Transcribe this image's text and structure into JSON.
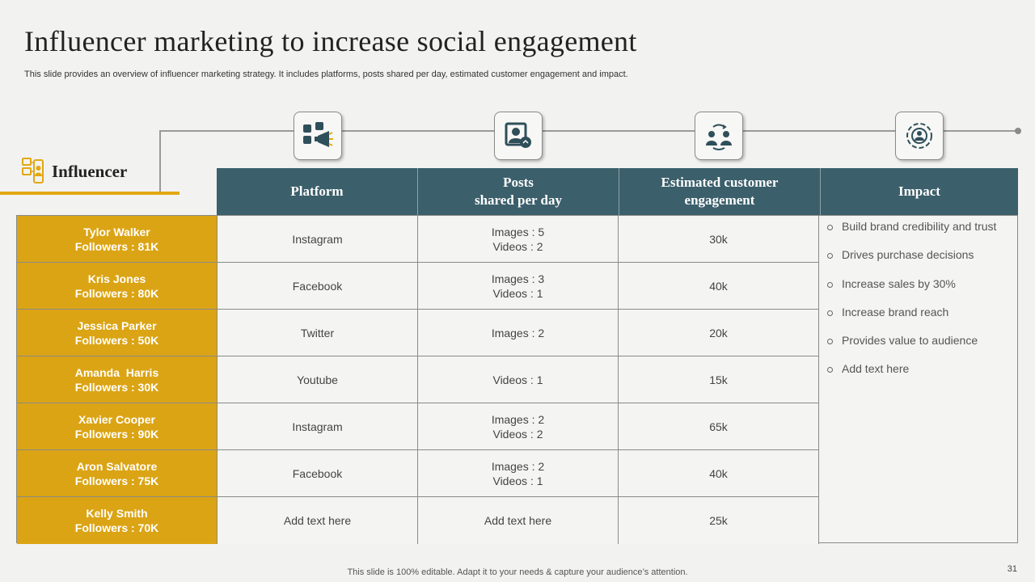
{
  "title": "Influencer marketing to increase social engagement",
  "subtitle": "This slide provides an overview of influencer marketing strategy. It includes platforms, posts shared per day, estimated customer engagement and impact.",
  "influencer_label": "Influencer",
  "icons": [
    "social-media-icon",
    "profile-card-icon",
    "engagement-people-icon",
    "impact-target-icon"
  ],
  "colors": {
    "accent": "#dba414",
    "header": "#3b5f6b",
    "background": "#f2f2f0"
  },
  "headers": {
    "platform": "Platform",
    "posts_line1": "Posts",
    "posts_line2": "shared per day",
    "engagement_line1": "Estimated customer",
    "engagement_line2": "engagement",
    "impact": "Impact"
  },
  "rows": [
    {
      "name": "Tylor Walker",
      "followers": "Followers : 81K",
      "platform": "Instagram",
      "posts1": "Images : 5",
      "posts2": "Videos : 2",
      "engagement": "30k"
    },
    {
      "name": "Kris Jones",
      "followers": "Followers : 80K",
      "platform": "Facebook",
      "posts1": "Images : 3",
      "posts2": "Videos : 1",
      "engagement": "40k"
    },
    {
      "name": "Jessica Parker",
      "followers": "Followers : 50K",
      "platform": "Twitter",
      "posts1": "Images : 2",
      "posts2": "",
      "engagement": "20k"
    },
    {
      "name": "Amanda  Harris",
      "followers": "Followers : 30K",
      "platform": "Youtube",
      "posts1": "Videos : 1",
      "posts2": "",
      "engagement": "15k"
    },
    {
      "name": "Xavier Cooper",
      "followers": "Followers : 90K",
      "platform": "Instagram",
      "posts1": "Images : 2",
      "posts2": "Videos : 2",
      "engagement": "65k"
    },
    {
      "name": "Aron Salvatore",
      "followers": "Followers : 75K",
      "platform": "Facebook",
      "posts1": "Images : 2",
      "posts2": "Videos : 1",
      "engagement": "40k"
    },
    {
      "name": "Kelly Smith",
      "followers": "Followers : 70K",
      "platform": "Add text here",
      "posts1": "Add text here",
      "posts2": "",
      "engagement": "25k"
    }
  ],
  "impact": [
    "Build brand credibility and trust",
    "Drives purchase decisions",
    "Increase sales by 30%",
    "Increase brand reach",
    "Provides value to audience",
    "Add text here"
  ],
  "footer": "This slide is 100% editable. Adapt it to your needs & capture your audience’s attention.",
  "page_number": "31"
}
